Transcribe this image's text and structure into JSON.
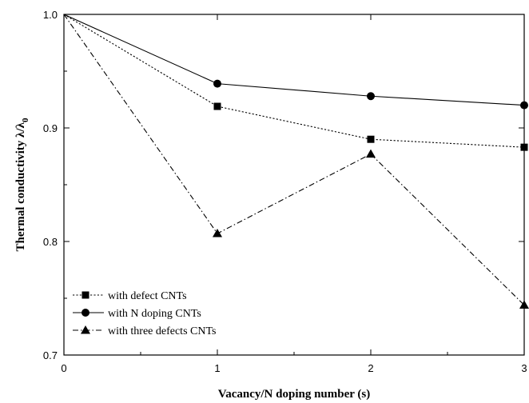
{
  "chart_data": {
    "type": "line",
    "title": "",
    "xlabel": "Vacancy/N doping number (s)",
    "ylabel_main": "Thermal conductivity λ/λ",
    "ylabel_subscript": "0",
    "x": [
      0,
      1,
      2,
      3
    ],
    "xlim": [
      0,
      3
    ],
    "ylim": [
      0.7,
      1.0
    ],
    "x_ticks": [
      "0",
      "1",
      "2",
      "3"
    ],
    "y_ticks": [
      "0.7",
      "0.8",
      "0.9",
      "1.0"
    ],
    "grid": false,
    "legend_position": "bottom-left",
    "series": [
      {
        "name": "with defect CNTs",
        "values": [
          1.0,
          0.919,
          0.89,
          0.883
        ],
        "marker": "square",
        "line_style": "dotted"
      },
      {
        "name": "with N doping CNTs",
        "values": [
          1.0,
          0.939,
          0.928,
          0.92
        ],
        "marker": "circle",
        "line_style": "solid"
      },
      {
        "name": "with three defects CNTs",
        "values": [
          1.0,
          0.807,
          0.877,
          0.744
        ],
        "marker": "triangle",
        "line_style": "dash-dot"
      }
    ]
  }
}
